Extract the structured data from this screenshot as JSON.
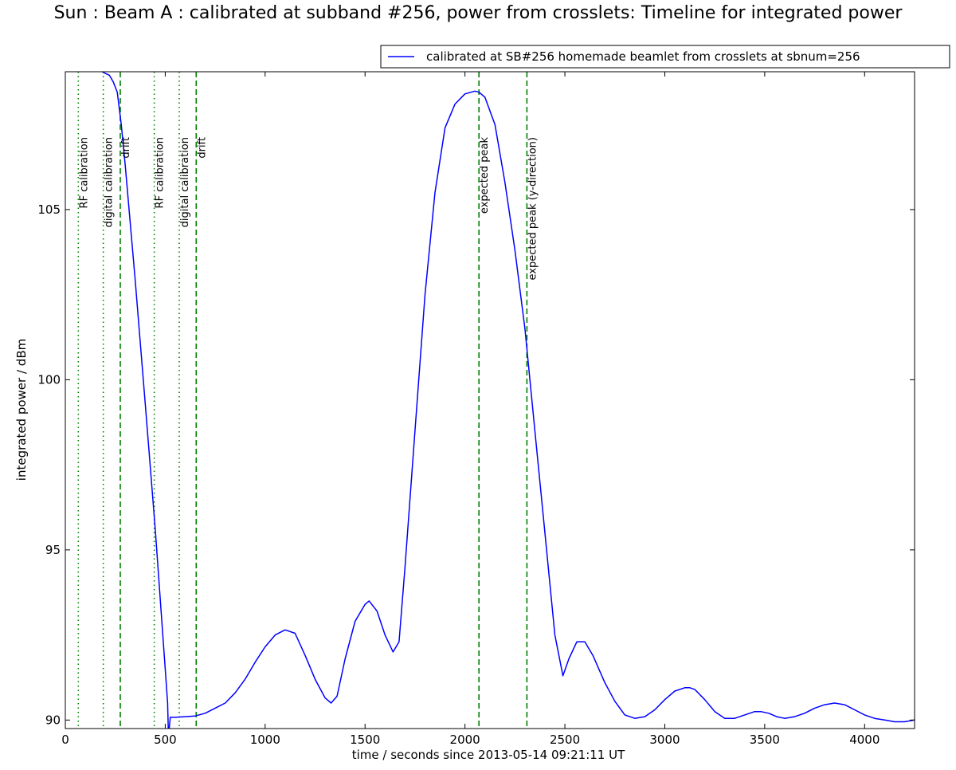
{
  "chart_data": {
    "type": "line",
    "title": "Sun : Beam A : calibrated at subband #256, power from crosslets: Timeline for integrated power",
    "xlabel": "time / seconds since 2013-05-14 09:21:11 UT",
    "ylabel": "integrated power / dBm",
    "xlim": [
      0,
      4250
    ],
    "ylim": [
      89.75,
      109.05
    ],
    "xticks": [
      0,
      500,
      1000,
      1500,
      2000,
      2500,
      3000,
      3500,
      4000
    ],
    "yticks": [
      90,
      95,
      100,
      105
    ],
    "grid": false,
    "legend_position": "top-right",
    "colors": {
      "series": "#0000ff",
      "marker": "#008000"
    },
    "series": [
      {
        "name": "calibrated at SB#256 homemade beamlet from crosslets at sbnum=256",
        "x": [
          0,
          20,
          150,
          185,
          200,
          220,
          240,
          260,
          280,
          300,
          350,
          400,
          450,
          500,
          512,
          515,
          520,
          525,
          550,
          600,
          650,
          700,
          750,
          800,
          850,
          900,
          950,
          1000,
          1050,
          1100,
          1150,
          1200,
          1250,
          1300,
          1330,
          1360,
          1400,
          1450,
          1500,
          1520,
          1560,
          1600,
          1640,
          1670,
          1700,
          1750,
          1800,
          1850,
          1900,
          1950,
          2000,
          2050,
          2070,
          2100,
          2150,
          2200,
          2250,
          2300,
          2350,
          2400,
          2450,
          2490,
          2520,
          2560,
          2600,
          2640,
          2700,
          2750,
          2800,
          2850,
          2900,
          2950,
          3000,
          3050,
          3100,
          3125,
          3150,
          3200,
          3250,
          3300,
          3350,
          3400,
          3450,
          3480,
          3520,
          3560,
          3600,
          3650,
          3700,
          3750,
          3800,
          3850,
          3900,
          3950,
          4000,
          4050,
          4100,
          4150,
          4200,
          4250
        ],
        "y": [
          null,
          null,
          null,
          109.05,
          109.0,
          108.95,
          108.75,
          108.45,
          107.5,
          106.3,
          102.9,
          99.3,
          95.6,
          91.5,
          90.5,
          89.75,
          89.75,
          90.08,
          90.08,
          90.1,
          90.12,
          90.2,
          90.35,
          90.5,
          90.8,
          91.2,
          91.7,
          92.15,
          92.5,
          92.65,
          92.55,
          91.9,
          91.2,
          90.65,
          90.5,
          90.7,
          91.8,
          92.9,
          93.4,
          93.5,
          93.2,
          92.5,
          92.0,
          92.3,
          94.5,
          98.5,
          102.5,
          105.5,
          107.4,
          108.1,
          108.4,
          108.48,
          108.45,
          108.3,
          107.5,
          105.8,
          103.8,
          101.5,
          98.5,
          95.5,
          92.5,
          91.3,
          91.8,
          92.3,
          92.3,
          91.9,
          91.1,
          90.55,
          90.15,
          90.05,
          90.1,
          90.3,
          90.6,
          90.85,
          90.95,
          90.95,
          90.9,
          90.6,
          90.25,
          90.05,
          90.05,
          90.15,
          90.25,
          90.25,
          90.2,
          90.1,
          90.05,
          90.1,
          90.2,
          90.35,
          90.45,
          90.5,
          90.45,
          90.3,
          90.15,
          90.05,
          90.0,
          89.95,
          89.95,
          90.0
        ]
      }
    ],
    "vlines": [
      {
        "x": 65,
        "style": "dotted",
        "label": "RF calibration"
      },
      {
        "x": 190,
        "style": "dotted",
        "label": "digital calibration"
      },
      {
        "x": 275,
        "style": "dashed",
        "label": "drift"
      },
      {
        "x": 445,
        "style": "dotted",
        "label": "RF calibration"
      },
      {
        "x": 570,
        "style": "dotted",
        "label": "digital calibration"
      },
      {
        "x": 655,
        "style": "dashed",
        "label": "drift"
      },
      {
        "x": 2070,
        "style": "dashed",
        "label": "expected peak"
      },
      {
        "x": 2310,
        "style": "dashed",
        "label": "expected peak (y-direction)"
      }
    ]
  }
}
